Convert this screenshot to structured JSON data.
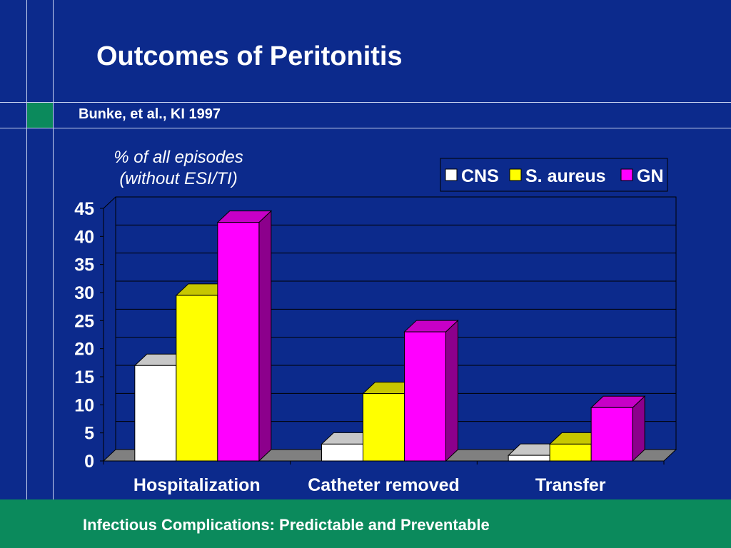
{
  "slide": {
    "title": "Outcomes of Peritonitis",
    "subtitle": "Bunke, et al., KI 1997",
    "footer": "Infectious Complications: Predictable and Preventable",
    "colors": {
      "background": "#0c2a8c",
      "footer_band": "#0b8a5c",
      "accent_square": "#0b8a5c",
      "text": "#ffffff"
    }
  },
  "chart_data": {
    "type": "bar",
    "style": "3d-clustered-column",
    "ylabel_lines": [
      "% of all episodes",
      "(without ESI/TI)"
    ],
    "categories": [
      "Hospitalization",
      "Catheter removed",
      "Transfer"
    ],
    "series": [
      {
        "name": "CNS",
        "values": [
          17,
          3,
          1
        ],
        "color": "#ffffff"
      },
      {
        "name": "S. aureus",
        "values": [
          29.5,
          12,
          3
        ],
        "color": "#ffff00"
      },
      {
        "name": "GN",
        "values": [
          42.5,
          23,
          9.5
        ],
        "color": "#ff00ff"
      }
    ],
    "ylim": [
      0,
      45
    ],
    "yticks": [
      0,
      5,
      10,
      15,
      20,
      25,
      30,
      35,
      40,
      45
    ],
    "grid": true,
    "legend_position": "top-right"
  }
}
